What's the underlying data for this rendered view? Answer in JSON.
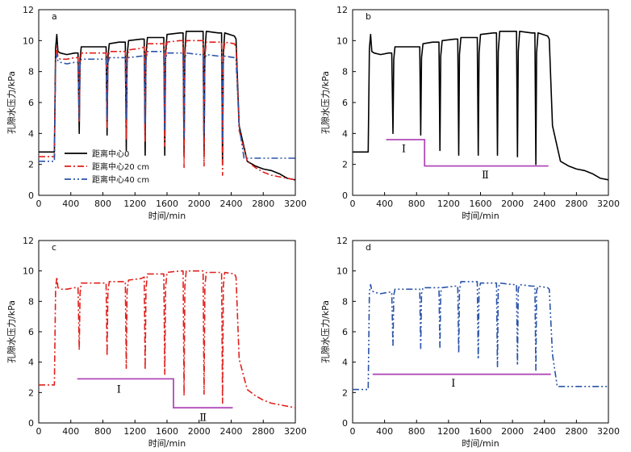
{
  "colors": {
    "black": "#000000",
    "red": "#e0211d",
    "blue": "#2a53a8",
    "purple": "#b04ab8"
  },
  "chart_data": [
    {
      "id": "a",
      "panel_label": "a",
      "type": "line",
      "xlabel": "时间/min",
      "ylabel": "孔隙水压力/kPa",
      "xlim": [
        0,
        3200
      ],
      "ylim": [
        0,
        12
      ],
      "xticks": [
        0,
        400,
        800,
        1200,
        1600,
        2000,
        2400,
        2800,
        3200
      ],
      "yticks": [
        0,
        2,
        4,
        6,
        8,
        10,
        12
      ],
      "legend": {
        "placement": "lower-left",
        "entries": [
          "距离中心0",
          "距离中心20 cm",
          "距离中心40 cm"
        ]
      },
      "series": [
        {
          "name": "距离中心0",
          "color": "#000000",
          "dash": "solid",
          "x": [
            0,
            195,
            210,
            225,
            240,
            270,
            350,
            450,
            490,
            505,
            515,
            530,
            700,
            840,
            852,
            862,
            880,
            1000,
            1080,
            1092,
            1102,
            1120,
            1280,
            1315,
            1327,
            1337,
            1355,
            1520,
            1560,
            1572,
            1582,
            1600,
            1760,
            1800,
            1812,
            1822,
            1840,
            2000,
            2050,
            2062,
            2072,
            2090,
            2240,
            2280,
            2292,
            2302,
            2320,
            2440,
            2460,
            2500,
            2600,
            2700,
            2800,
            2900,
            3000,
            3100,
            3200
          ],
          "y": [
            2.8,
            2.8,
            9.5,
            10.4,
            9.3,
            9.2,
            9.1,
            9.2,
            9.2,
            4.0,
            8.8,
            9.6,
            9.6,
            9.6,
            3.9,
            8.9,
            9.8,
            9.9,
            9.9,
            2.9,
            9.0,
            10.0,
            10.1,
            10.1,
            2.6,
            9.1,
            10.2,
            10.2,
            10.2,
            2.6,
            9.2,
            10.4,
            10.5,
            10.5,
            2.6,
            9.3,
            10.6,
            10.6,
            10.6,
            2.5,
            9.3,
            10.6,
            10.5,
            10.5,
            2.0,
            9.2,
            10.5,
            10.3,
            10.1,
            4.5,
            2.2,
            1.9,
            1.7,
            1.6,
            1.4,
            1.1,
            1.0
          ]
        },
        {
          "name": "距离中心20 cm",
          "color": "#e0211d",
          "dash": "8 3 2 3",
          "x": [
            0,
            195,
            210,
            225,
            240,
            270,
            350,
            450,
            490,
            505,
            515,
            530,
            700,
            840,
            852,
            862,
            880,
            1000,
            1080,
            1092,
            1102,
            1120,
            1280,
            1315,
            1327,
            1337,
            1355,
            1520,
            1560,
            1572,
            1582,
            1600,
            1760,
            1800,
            1812,
            1822,
            1840,
            2000,
            2050,
            2062,
            2072,
            2090,
            2240,
            2280,
            2292,
            2302,
            2320,
            2440,
            2460,
            2500,
            2600,
            2700,
            2800,
            2900,
            3000,
            3100,
            3200
          ],
          "y": [
            2.5,
            2.5,
            8.8,
            9.6,
            8.9,
            8.8,
            8.8,
            8.9,
            8.9,
            4.8,
            8.5,
            9.2,
            9.2,
            9.2,
            4.4,
            8.6,
            9.3,
            9.3,
            9.3,
            3.6,
            8.7,
            9.4,
            9.5,
            9.6,
            3.5,
            8.8,
            9.8,
            9.8,
            9.8,
            3.2,
            8.9,
            9.9,
            10.0,
            10.0,
            1.8,
            9.0,
            10.0,
            10.0,
            10.0,
            1.9,
            9.0,
            9.9,
            9.9,
            9.9,
            1.3,
            9.0,
            9.9,
            9.8,
            9.6,
            4.2,
            2.2,
            1.8,
            1.5,
            1.3,
            1.2,
            1.1,
            1.0
          ]
        },
        {
          "name": "距离中心40 cm",
          "color": "#2a53a8",
          "dash": "8 3 2 3 2 3",
          "x": [
            0,
            195,
            210,
            225,
            240,
            270,
            350,
            450,
            490,
            505,
            515,
            530,
            700,
            840,
            852,
            862,
            880,
            1000,
            1080,
            1092,
            1102,
            1120,
            1280,
            1315,
            1327,
            1337,
            1355,
            1520,
            1560,
            1572,
            1582,
            1600,
            1760,
            1800,
            1812,
            1822,
            1840,
            2000,
            2050,
            2062,
            2072,
            2090,
            2240,
            2280,
            2292,
            2302,
            2320,
            2440,
            2460,
            2500,
            2560,
            2600,
            2800,
            3000,
            3200
          ],
          "y": [
            2.2,
            2.2,
            8.6,
            9.1,
            8.7,
            8.6,
            8.5,
            8.6,
            8.6,
            5.0,
            8.4,
            8.8,
            8.8,
            8.8,
            4.9,
            8.5,
            8.9,
            8.9,
            8.9,
            4.9,
            8.6,
            8.9,
            9.0,
            9.0,
            4.6,
            8.7,
            9.3,
            9.3,
            9.3,
            4.2,
            8.8,
            9.2,
            9.2,
            9.2,
            3.7,
            8.8,
            9.2,
            9.1,
            9.1,
            3.8,
            8.8,
            9.1,
            9.0,
            9.0,
            3.4,
            8.7,
            9.0,
            8.9,
            8.8,
            4.5,
            2.4,
            2.4,
            2.4,
            2.4,
            2.4
          ]
        }
      ],
      "stage_lines": []
    },
    {
      "id": "b",
      "panel_label": "b",
      "type": "line",
      "xlabel": "时间/min",
      "ylabel": "孔隙水压力/kPa",
      "xlim": [
        0,
        3200
      ],
      "ylim": [
        0,
        12
      ],
      "xticks": [
        0,
        400,
        800,
        1200,
        1600,
        2000,
        2400,
        2800,
        3200
      ],
      "yticks": [
        0,
        2,
        4,
        6,
        8,
        10,
        12
      ],
      "series": [
        {
          "name": "",
          "color": "#000000",
          "dash": "solid",
          "x": [
            0,
            195,
            210,
            225,
            240,
            270,
            350,
            450,
            490,
            505,
            515,
            530,
            700,
            840,
            852,
            862,
            880,
            1000,
            1080,
            1092,
            1102,
            1120,
            1280,
            1315,
            1327,
            1337,
            1355,
            1520,
            1560,
            1572,
            1582,
            1600,
            1760,
            1800,
            1812,
            1822,
            1840,
            2000,
            2050,
            2062,
            2072,
            2090,
            2240,
            2280,
            2292,
            2302,
            2320,
            2440,
            2460,
            2500,
            2600,
            2700,
            2800,
            2900,
            3000,
            3100,
            3200
          ],
          "y": [
            2.8,
            2.8,
            9.5,
            10.4,
            9.3,
            9.2,
            9.1,
            9.2,
            9.2,
            4.0,
            8.8,
            9.6,
            9.6,
            9.6,
            3.9,
            8.9,
            9.8,
            9.9,
            9.9,
            2.9,
            9.0,
            10.0,
            10.1,
            10.1,
            2.6,
            9.1,
            10.2,
            10.2,
            10.2,
            2.6,
            9.2,
            10.4,
            10.5,
            10.5,
            2.6,
            9.3,
            10.6,
            10.6,
            10.6,
            2.5,
            9.3,
            10.6,
            10.5,
            10.5,
            2.0,
            9.2,
            10.5,
            10.3,
            10.1,
            4.5,
            2.2,
            1.9,
            1.7,
            1.6,
            1.4,
            1.1,
            1.0
          ]
        }
      ],
      "stage_lines": [
        {
          "x": [
            420,
            900,
            900,
            2450
          ],
          "y": [
            3.6,
            3.6,
            1.9,
            1.9
          ]
        }
      ],
      "stage_labels": [
        {
          "text": "Ⅰ",
          "x": 640,
          "y": 3.0
        },
        {
          "text": "Ⅱ",
          "x": 1660,
          "y": 1.3
        }
      ]
    },
    {
      "id": "c",
      "panel_label": "c",
      "type": "line",
      "xlabel": "时间/min",
      "ylabel": "孔隙水压力/kPa",
      "xlim": [
        0,
        3200
      ],
      "ylim": [
        0,
        12
      ],
      "xticks": [
        0,
        400,
        800,
        1200,
        1600,
        2000,
        2400,
        2800,
        3200
      ],
      "yticks": [
        0,
        2,
        4,
        6,
        8,
        10,
        12
      ],
      "series": [
        {
          "name": "",
          "color": "#e0211d",
          "dash": "8 3 2 3",
          "x": [
            0,
            195,
            210,
            225,
            240,
            270,
            350,
            450,
            490,
            505,
            515,
            530,
            700,
            840,
            852,
            862,
            880,
            1000,
            1080,
            1092,
            1102,
            1120,
            1280,
            1315,
            1327,
            1337,
            1355,
            1520,
            1560,
            1572,
            1582,
            1600,
            1760,
            1800,
            1812,
            1822,
            1840,
            2000,
            2050,
            2062,
            2072,
            2090,
            2240,
            2280,
            2292,
            2302,
            2320,
            2440,
            2460,
            2500,
            2600,
            2700,
            2800,
            2900,
            3000,
            3100,
            3200
          ],
          "y": [
            2.5,
            2.5,
            8.8,
            9.6,
            8.9,
            8.8,
            8.8,
            8.9,
            8.9,
            4.8,
            8.5,
            9.2,
            9.2,
            9.2,
            4.4,
            8.6,
            9.3,
            9.3,
            9.3,
            3.6,
            8.7,
            9.4,
            9.5,
            9.6,
            3.5,
            8.8,
            9.8,
            9.8,
            9.8,
            3.2,
            8.9,
            9.9,
            10.0,
            10.0,
            1.8,
            9.0,
            10.0,
            10.0,
            10.0,
            1.9,
            9.0,
            9.9,
            9.9,
            9.9,
            1.3,
            9.0,
            9.9,
            9.8,
            9.6,
            4.2,
            2.2,
            1.8,
            1.5,
            1.3,
            1.2,
            1.1,
            1.0
          ]
        }
      ],
      "stage_lines": [
        {
          "x": [
            480,
            1680,
            1680,
            2420
          ],
          "y": [
            2.9,
            2.9,
            1.0,
            1.0
          ]
        }
      ],
      "stage_labels": [
        {
          "text": "Ⅰ",
          "x": 1000,
          "y": 2.2
        },
        {
          "text": "Ⅱ",
          "x": 2050,
          "y": 0.35
        }
      ]
    },
    {
      "id": "d",
      "panel_label": "d",
      "type": "line",
      "xlabel": "时间/min",
      "ylabel": "孔隙水压力/kPa",
      "xlim": [
        0,
        3200
      ],
      "ylim": [
        0,
        12
      ],
      "xticks": [
        0,
        400,
        800,
        1200,
        1600,
        2000,
        2400,
        2800,
        3200
      ],
      "yticks": [
        0,
        2,
        4,
        6,
        8,
        10,
        12
      ],
      "series": [
        {
          "name": "",
          "color": "#2a53a8",
          "dash": "8 3 2 3 2 3",
          "x": [
            0,
            195,
            210,
            225,
            240,
            270,
            350,
            450,
            490,
            505,
            515,
            530,
            700,
            840,
            852,
            862,
            880,
            1000,
            1080,
            1092,
            1102,
            1120,
            1280,
            1315,
            1327,
            1337,
            1355,
            1520,
            1560,
            1572,
            1582,
            1600,
            1760,
            1800,
            1812,
            1822,
            1840,
            2000,
            2050,
            2062,
            2072,
            2090,
            2240,
            2280,
            2292,
            2302,
            2320,
            2440,
            2460,
            2500,
            2560,
            2600,
            2800,
            3000,
            3200
          ],
          "y": [
            2.2,
            2.2,
            8.6,
            9.1,
            8.7,
            8.6,
            8.5,
            8.6,
            8.6,
            5.0,
            8.4,
            8.8,
            8.8,
            8.8,
            4.9,
            8.5,
            8.9,
            8.9,
            8.9,
            4.9,
            8.6,
            8.9,
            9.0,
            9.0,
            4.6,
            8.7,
            9.3,
            9.3,
            9.3,
            4.2,
            8.8,
            9.2,
            9.2,
            9.2,
            3.7,
            8.8,
            9.2,
            9.1,
            9.1,
            3.8,
            8.8,
            9.1,
            9.0,
            9.0,
            3.4,
            8.7,
            9.0,
            8.9,
            8.8,
            4.5,
            2.4,
            2.4,
            2.4,
            2.4,
            2.4
          ]
        }
      ],
      "stage_lines": [
        {
          "x": [
            250,
            2480
          ],
          "y": [
            3.2,
            3.2
          ]
        }
      ],
      "stage_labels": [
        {
          "text": "Ⅰ",
          "x": 1260,
          "y": 2.6
        }
      ]
    }
  ]
}
